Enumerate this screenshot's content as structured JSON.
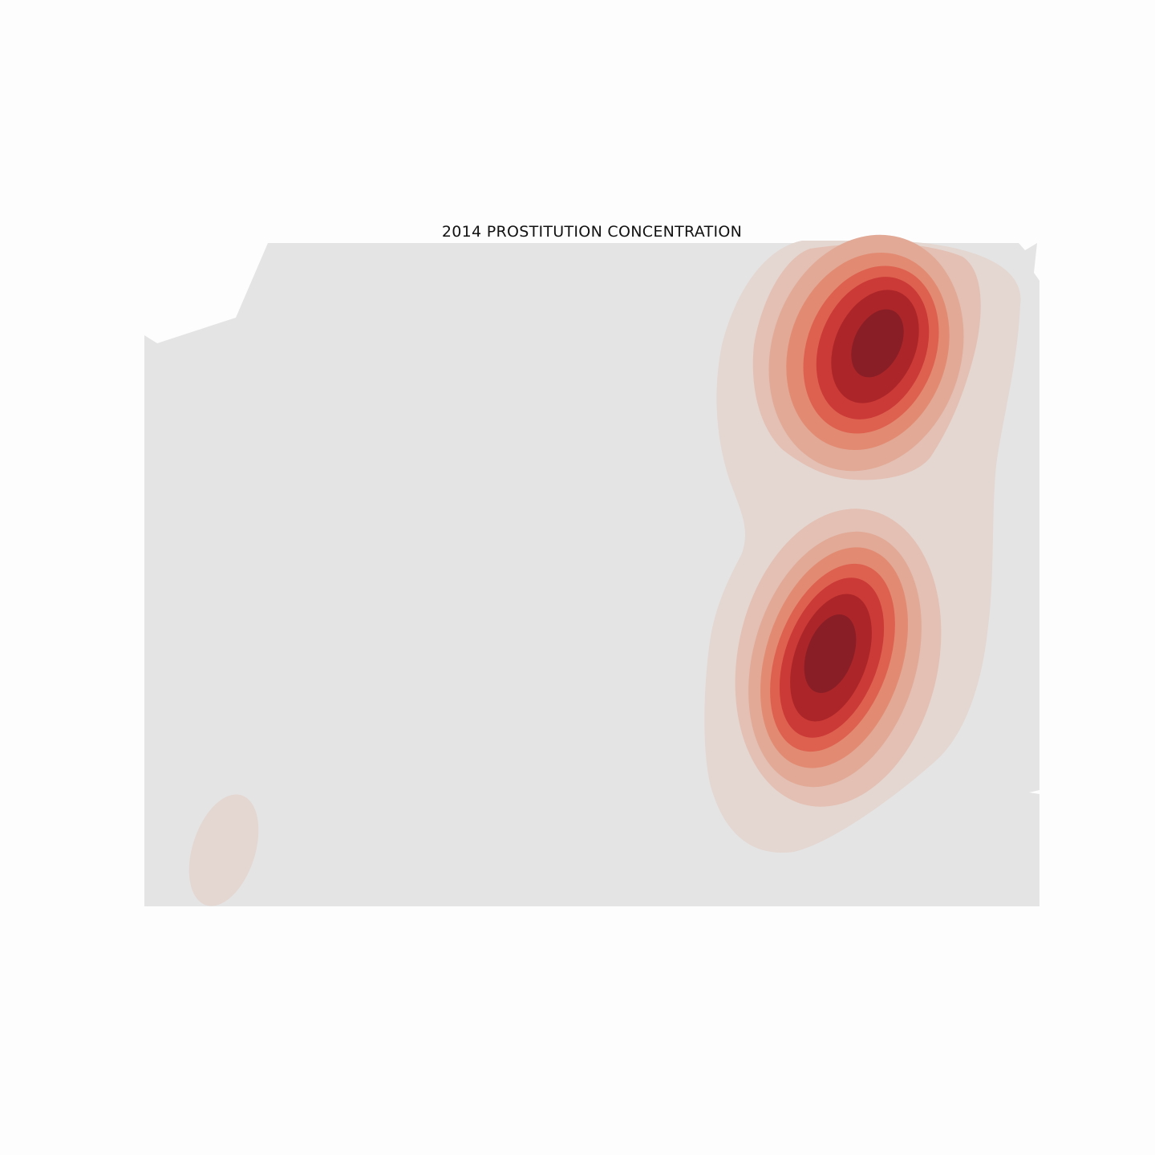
{
  "map": {
    "title": "2014 PROSTITUTION CONCENTRATION",
    "type": "density-contour",
    "colors": {
      "page_background": "#fdfdfd",
      "land": "#e4e4e4",
      "density_levels": [
        "#e4d6d0",
        "#e3c0b3",
        "#e1a996",
        "#e28b72",
        "#de6150",
        "#cb3a36",
        "#ac2629",
        "#891e26"
      ]
    },
    "hotspots": [
      {
        "name": "north",
        "relative_density": 1.0
      },
      {
        "name": "south",
        "relative_density": 1.0
      },
      {
        "name": "southwest",
        "relative_density": 0.12
      }
    ]
  }
}
